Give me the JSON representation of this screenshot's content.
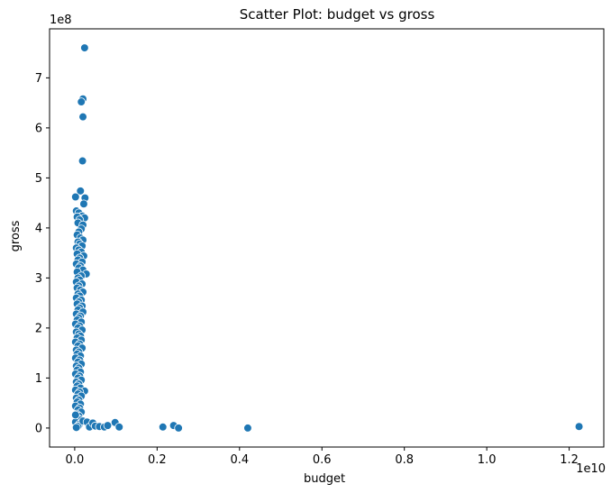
{
  "chart_data": {
    "type": "scatter",
    "title": "Scatter Plot: budget vs gross",
    "xlabel": "budget",
    "ylabel": "gross",
    "x_offset_label": "1e10",
    "y_offset_label": "1e8",
    "xlim": [
      -0.061,
      1.284
    ],
    "ylim": [
      -0.38,
      7.98
    ],
    "x_ticks": [
      0.0,
      0.2,
      0.4,
      0.6,
      0.8,
      1.0,
      1.2
    ],
    "x_tick_labels": [
      "0.0",
      "0.2",
      "0.4",
      "0.6",
      "0.8",
      "1.0",
      "1.2"
    ],
    "y_ticks": [
      0,
      1,
      2,
      3,
      4,
      5,
      6,
      7
    ],
    "y_tick_labels": [
      "0",
      "1",
      "2",
      "3",
      "4",
      "5",
      "6",
      "7"
    ],
    "grid": false,
    "legend": "none",
    "marker_color": "#1f77b4",
    "marker_edge_color": "#ffffff",
    "x_units_note": "budget in units of 1e10",
    "y_units_note": "gross in units of 1e8",
    "points": [
      [
        0.024,
        7.6
      ],
      [
        0.02,
        6.58
      ],
      [
        0.016,
        6.52
      ],
      [
        0.02,
        6.22
      ],
      [
        0.019,
        5.34
      ],
      [
        0.014,
        4.74
      ],
      [
        0.002,
        4.62
      ],
      [
        0.025,
        4.6
      ],
      [
        0.022,
        4.48
      ],
      [
        0.004,
        4.34
      ],
      [
        0.01,
        4.3
      ],
      [
        0.018,
        4.24
      ],
      [
        0.006,
        4.22
      ],
      [
        0.024,
        4.2
      ],
      [
        0.012,
        4.16
      ],
      [
        0.008,
        4.1
      ],
      [
        0.02,
        4.06
      ],
      [
        0.016,
        3.98
      ],
      [
        0.01,
        3.92
      ],
      [
        0.006,
        3.86
      ],
      [
        0.014,
        3.8
      ],
      [
        0.02,
        3.76
      ],
      [
        0.008,
        3.72
      ],
      [
        0.012,
        3.68
      ],
      [
        0.018,
        3.64
      ],
      [
        0.004,
        3.6
      ],
      [
        0.01,
        3.56
      ],
      [
        0.016,
        3.52
      ],
      [
        0.006,
        3.48
      ],
      [
        0.022,
        3.44
      ],
      [
        0.012,
        3.4
      ],
      [
        0.008,
        3.36
      ],
      [
        0.018,
        3.32
      ],
      [
        0.004,
        3.28
      ],
      [
        0.014,
        3.24
      ],
      [
        0.01,
        3.2
      ],
      [
        0.02,
        3.16
      ],
      [
        0.006,
        3.12
      ],
      [
        0.028,
        3.08
      ],
      [
        0.016,
        3.04
      ],
      [
        0.008,
        3.0
      ],
      [
        0.012,
        2.96
      ],
      [
        0.004,
        2.92
      ],
      [
        0.018,
        2.88
      ],
      [
        0.01,
        2.84
      ],
      [
        0.006,
        2.8
      ],
      [
        0.014,
        2.76
      ],
      [
        0.02,
        2.72
      ],
      [
        0.008,
        2.68
      ],
      [
        0.012,
        2.64
      ],
      [
        0.004,
        2.6
      ],
      [
        0.016,
        2.56
      ],
      [
        0.01,
        2.52
      ],
      [
        0.006,
        2.48
      ],
      [
        0.018,
        2.44
      ],
      [
        0.012,
        2.4
      ],
      [
        0.008,
        2.36
      ],
      [
        0.02,
        2.32
      ],
      [
        0.004,
        2.28
      ],
      [
        0.014,
        2.24
      ],
      [
        0.01,
        2.2
      ],
      [
        0.006,
        2.16
      ],
      [
        0.016,
        2.12
      ],
      [
        0.002,
        2.08
      ],
      [
        0.012,
        2.04
      ],
      [
        0.008,
        2.0
      ],
      [
        0.018,
        1.96
      ],
      [
        0.004,
        1.92
      ],
      [
        0.01,
        1.88
      ],
      [
        0.014,
        1.84
      ],
      [
        0.006,
        1.8
      ],
      [
        0.016,
        1.76
      ],
      [
        0.002,
        1.72
      ],
      [
        0.012,
        1.68
      ],
      [
        0.008,
        1.64
      ],
      [
        0.018,
        1.6
      ],
      [
        0.004,
        1.56
      ],
      [
        0.01,
        1.52
      ],
      [
        0.006,
        1.48
      ],
      [
        0.014,
        1.44
      ],
      [
        0.002,
        1.4
      ],
      [
        0.012,
        1.36
      ],
      [
        0.008,
        1.32
      ],
      [
        0.016,
        1.28
      ],
      [
        0.004,
        1.24
      ],
      [
        0.01,
        1.2
      ],
      [
        0.006,
        1.16
      ],
      [
        0.014,
        1.12
      ],
      [
        0.002,
        1.08
      ],
      [
        0.012,
        1.04
      ],
      [
        0.008,
        1.0
      ],
      [
        0.016,
        0.96
      ],
      [
        0.004,
        0.92
      ],
      [
        0.01,
        0.88
      ],
      [
        0.006,
        0.84
      ],
      [
        0.014,
        0.8
      ],
      [
        0.002,
        0.76
      ],
      [
        0.024,
        0.74
      ],
      [
        0.012,
        0.72
      ],
      [
        0.008,
        0.68
      ],
      [
        0.016,
        0.64
      ],
      [
        0.004,
        0.6
      ],
      [
        0.01,
        0.56
      ],
      [
        0.006,
        0.52
      ],
      [
        0.014,
        0.48
      ],
      [
        0.002,
        0.44
      ],
      [
        0.012,
        0.4
      ],
      [
        0.008,
        0.36
      ],
      [
        0.016,
        0.32
      ],
      [
        0.004,
        0.28
      ],
      [
        0.01,
        0.24
      ],
      [
        0.006,
        0.2
      ],
      [
        0.014,
        0.16
      ],
      [
        0.002,
        0.12
      ],
      [
        0.012,
        0.08
      ],
      [
        0.008,
        0.04
      ],
      [
        0.004,
        0.01
      ],
      [
        0.002,
        0.26
      ],
      [
        0.02,
        0.14
      ],
      [
        0.03,
        0.12
      ],
      [
        0.036,
        0.02
      ],
      [
        0.044,
        0.1
      ],
      [
        0.05,
        0.04
      ],
      [
        0.06,
        0.03
      ],
      [
        0.072,
        0.02
      ],
      [
        0.08,
        0.05
      ],
      [
        0.098,
        0.11
      ],
      [
        0.108,
        0.02
      ],
      [
        0.214,
        0.02
      ],
      [
        0.24,
        0.05
      ],
      [
        0.252,
        0.0
      ],
      [
        0.42,
        0.0
      ],
      [
        1.224,
        0.03
      ]
    ]
  }
}
